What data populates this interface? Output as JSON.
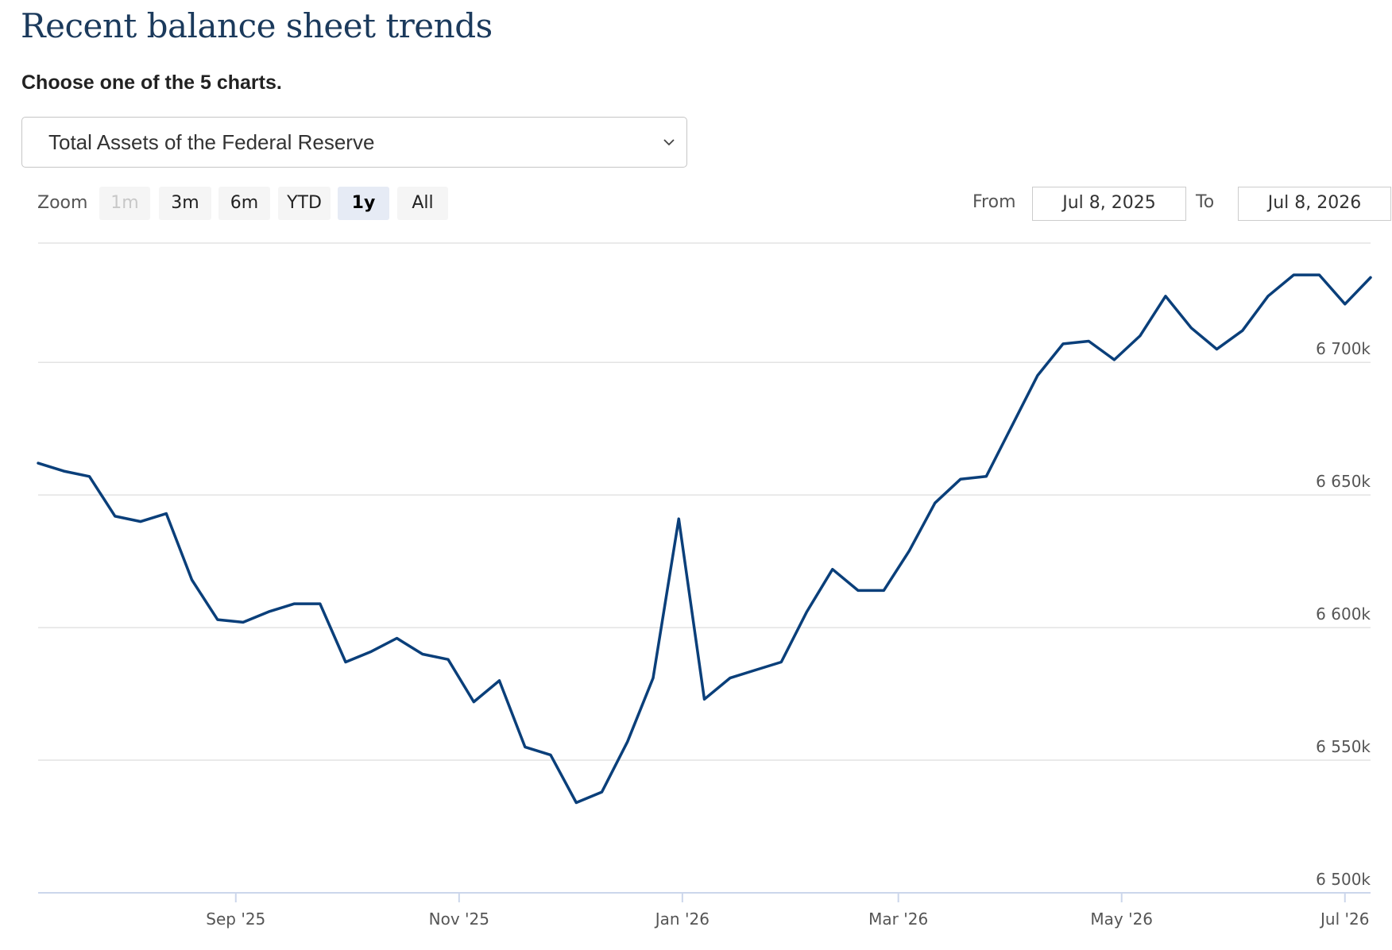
{
  "header": {
    "title": "Recent balance sheet trends",
    "subtitle": "Choose one of the 5 charts."
  },
  "selector": {
    "selected": "Total Assets of the Federal Reserve",
    "icon": "chevron-down-icon"
  },
  "range_selector": {
    "zoom_label": "Zoom",
    "buttons": [
      {
        "label": "1m",
        "state": "disabled"
      },
      {
        "label": "3m",
        "state": "normal"
      },
      {
        "label": "6m",
        "state": "normal"
      },
      {
        "label": "YTD",
        "state": "normal"
      },
      {
        "label": "1y",
        "state": "selected"
      },
      {
        "label": "All",
        "state": "normal"
      }
    ],
    "from_label": "From",
    "from_value": "Jul 8, 2025",
    "to_label": "To",
    "to_value": "Jul 8, 2026"
  },
  "colors": {
    "line": "#0a3f7a",
    "title": "#1b3a5c",
    "grid": "#e3e3e3",
    "axis": "#ccd6eb",
    "selected_button": "#e6ebf5"
  },
  "chart_data": {
    "type": "line",
    "title": "",
    "xlabel": "",
    "ylabel": "",
    "ylim": [
      6500000,
      6745000
    ],
    "xlim": [
      "2025-07-09",
      "2026-07-08"
    ],
    "grid": true,
    "y_ticks": [
      {
        "value": 6500000,
        "label": "6 500k"
      },
      {
        "value": 6550000,
        "label": "6 550k"
      },
      {
        "value": 6600000,
        "label": "6 600k"
      },
      {
        "value": 6650000,
        "label": "6 650k"
      },
      {
        "value": 6700000,
        "label": "6 700k"
      }
    ],
    "x_ticks": [
      {
        "date": "2025-09-01",
        "label": "Sep '25"
      },
      {
        "date": "2025-11-01",
        "label": "Nov '25"
      },
      {
        "date": "2026-01-01",
        "label": "Jan '26"
      },
      {
        "date": "2026-03-01",
        "label": "Mar '26"
      },
      {
        "date": "2026-05-01",
        "label": "May '26"
      },
      {
        "date": "2026-07-01",
        "label": "Jul '26"
      }
    ],
    "series": [
      {
        "x": [
          "2025-07-09",
          "2025-07-16",
          "2025-07-23",
          "2025-07-30",
          "2025-08-06",
          "2025-08-13",
          "2025-08-20",
          "2025-08-27",
          "2025-09-03",
          "2025-09-10",
          "2025-09-17",
          "2025-09-24",
          "2025-10-01",
          "2025-10-08",
          "2025-10-15",
          "2025-10-22",
          "2025-10-29",
          "2025-11-05",
          "2025-11-12",
          "2025-11-19",
          "2025-11-26",
          "2025-12-03",
          "2025-12-10",
          "2025-12-17",
          "2025-12-24",
          "2025-12-31",
          "2026-01-07",
          "2026-01-14",
          "2026-01-21",
          "2026-01-28",
          "2026-02-04",
          "2026-02-11",
          "2026-02-18",
          "2026-02-25",
          "2026-03-04",
          "2026-03-11",
          "2026-03-18",
          "2026-03-25",
          "2026-04-01",
          "2026-04-08",
          "2026-04-15",
          "2026-04-22",
          "2026-04-29",
          "2026-05-06",
          "2026-05-13",
          "2026-05-20",
          "2026-05-27",
          "2026-06-03",
          "2026-06-10",
          "2026-06-17",
          "2026-06-24",
          "2026-07-01",
          "2026-07-08"
        ],
        "values": [
          6662000,
          6659000,
          6657000,
          6642000,
          6640000,
          6643000,
          6618000,
          6603000,
          6602000,
          6606000,
          6609000,
          6609000,
          6587000,
          6591000,
          6596000,
          6590000,
          6588000,
          6572000,
          6580000,
          6555000,
          6552000,
          6534000,
          6538000,
          6557000,
          6581000,
          6641000,
          6573000,
          6581000,
          6584000,
          6587000,
          6606000,
          6622000,
          6614000,
          6614000,
          6629000,
          6647000,
          6656000,
          6657000,
          6676000,
          6695000,
          6707000,
          6708000,
          6701000,
          6710000,
          6725000,
          6713000,
          6705000,
          6712000,
          6725000,
          6733000,
          6733000,
          6722000,
          6732000
        ]
      }
    ]
  }
}
